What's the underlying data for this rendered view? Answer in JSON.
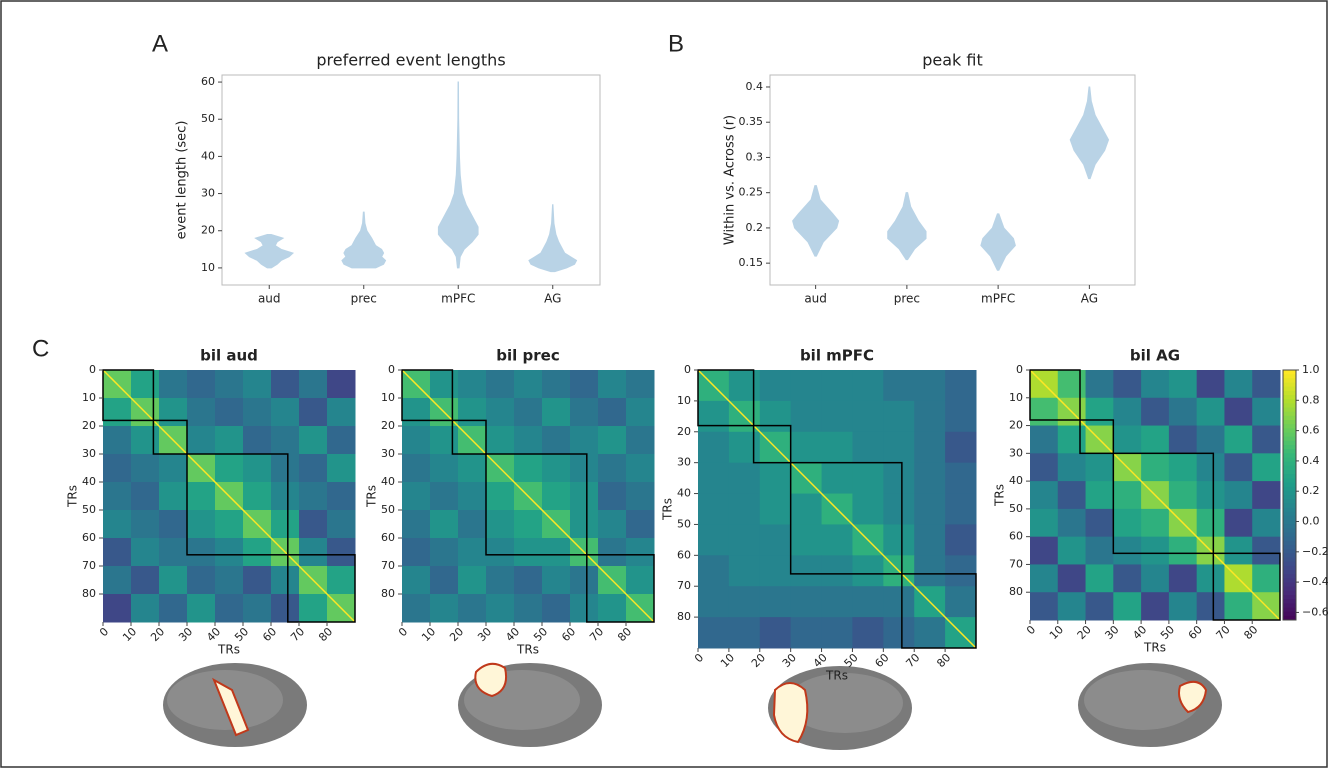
{
  "chart_data": [
    {
      "type": "violin",
      "panel_label": "A",
      "title": "preferred event lengths",
      "ylabel": "event length (sec)",
      "categories": [
        "aud",
        "prec",
        "mPFC",
        "AG"
      ],
      "color": "#b9d3e6",
      "violins": [
        {
          "y": [
            10,
            11,
            12,
            13,
            14,
            15,
            16,
            17,
            18,
            19
          ],
          "width": [
            0.05,
            0.2,
            0.3,
            0.5,
            0.6,
            0.3,
            0.15,
            0.2,
            0.35,
            0.05
          ]
        },
        {
          "y": [
            10,
            11,
            12,
            13,
            14,
            15,
            16,
            17,
            18,
            20,
            22,
            25
          ],
          "width": [
            0.3,
            0.5,
            0.55,
            0.45,
            0.5,
            0.45,
            0.3,
            0.25,
            0.2,
            0.08,
            0.03,
            0.01
          ]
        },
        {
          "y": [
            10,
            13,
            15,
            17,
            19,
            21,
            24,
            27,
            30,
            35,
            40,
            50,
            60
          ],
          "width": [
            0.02,
            0.05,
            0.15,
            0.35,
            0.5,
            0.5,
            0.35,
            0.2,
            0.1,
            0.05,
            0.03,
            0.01,
            0.005
          ]
        },
        {
          "y": [
            9,
            10,
            11,
            12,
            13,
            14,
            15,
            17,
            19,
            22,
            27
          ],
          "width": [
            0.05,
            0.35,
            0.55,
            0.6,
            0.45,
            0.3,
            0.25,
            0.15,
            0.08,
            0.03,
            0.005
          ]
        }
      ],
      "ylim": [
        5.4,
        61.9
      ],
      "yticks": [
        10,
        20,
        30,
        40,
        50,
        60
      ]
    },
    {
      "type": "violin",
      "panel_label": "B",
      "title": "peak fit",
      "ylabel": "Within vs. Across (r)",
      "categories": [
        "aud",
        "prec",
        "mPFC",
        "AG"
      ],
      "color": "#b9d3e6",
      "violins": [
        {
          "y": [
            0.16,
            0.18,
            0.2,
            0.21,
            0.22,
            0.24,
            0.26
          ],
          "width": [
            0.02,
            0.2,
            0.55,
            0.6,
            0.45,
            0.12,
            0.02
          ]
        },
        {
          "y": [
            0.155,
            0.17,
            0.185,
            0.195,
            0.21,
            0.23,
            0.25
          ],
          "width": [
            0.02,
            0.2,
            0.5,
            0.5,
            0.3,
            0.1,
            0.02
          ]
        },
        {
          "y": [
            0.14,
            0.16,
            0.175,
            0.185,
            0.2,
            0.22
          ],
          "width": [
            0.02,
            0.2,
            0.45,
            0.4,
            0.15,
            0.02
          ]
        },
        {
          "y": [
            0.27,
            0.29,
            0.31,
            0.325,
            0.34,
            0.36,
            0.38,
            0.4
          ],
          "width": [
            0.02,
            0.15,
            0.4,
            0.5,
            0.35,
            0.15,
            0.05,
            0.01
          ]
        }
      ],
      "ylim": [
        0.119,
        0.417
      ],
      "yticks": [
        0.15,
        0.2,
        0.25,
        0.3,
        0.35,
        0.4
      ]
    },
    {
      "type": "heatmap",
      "panel_label": "C",
      "title": "bil aud",
      "xlabel": "TRs",
      "ylabel": "TRs",
      "xlim": [
        0,
        90
      ],
      "ylim": [
        0,
        90
      ],
      "xticks": [
        0,
        10,
        20,
        30,
        40,
        50,
        60,
        70,
        80
      ],
      "yticks": [
        0,
        10,
        20,
        30,
        40,
        50,
        60,
        70,
        80
      ],
      "boundaries": [
        0,
        18,
        30,
        66,
        90
      ],
      "matrix": [
        [
          0.6,
          0.3,
          0.0,
          -0.1,
          0.0,
          0.1,
          -0.2,
          0.0,
          -0.3
        ],
        [
          0.3,
          0.6,
          0.2,
          0.0,
          -0.1,
          0.0,
          0.1,
          -0.2,
          0.1
        ],
        [
          0.0,
          0.2,
          0.6,
          0.1,
          0.2,
          -0.1,
          0.0,
          0.2,
          -0.1
        ],
        [
          -0.1,
          0.0,
          0.1,
          0.6,
          0.3,
          0.2,
          0.0,
          -0.1,
          0.2
        ],
        [
          0.0,
          -0.1,
          0.2,
          0.3,
          0.6,
          0.3,
          0.1,
          0.0,
          -0.1
        ],
        [
          0.1,
          0.0,
          -0.1,
          0.2,
          0.3,
          0.6,
          0.3,
          -0.2,
          0.0
        ],
        [
          -0.2,
          0.1,
          0.0,
          0.0,
          0.1,
          0.3,
          0.6,
          0.1,
          -0.2
        ],
        [
          0.0,
          -0.2,
          0.2,
          -0.1,
          0.0,
          -0.2,
          0.1,
          0.6,
          0.3
        ],
        [
          -0.3,
          0.1,
          -0.1,
          0.2,
          -0.1,
          0.0,
          -0.2,
          0.3,
          0.6
        ]
      ]
    },
    {
      "type": "heatmap",
      "title": "bil prec",
      "xlabel": "TRs",
      "ylabel": "TRs",
      "xlim": [
        0,
        90
      ],
      "ylim": [
        0,
        90
      ],
      "xticks": [
        0,
        10,
        20,
        30,
        40,
        50,
        60,
        70,
        80
      ],
      "yticks": [
        0,
        10,
        20,
        30,
        40,
        50,
        60,
        70,
        80
      ],
      "boundaries": [
        0,
        18,
        30,
        66,
        90
      ],
      "matrix": [
        [
          0.5,
          0.2,
          0.1,
          0.0,
          0.1,
          0.0,
          -0.1,
          0.1,
          0.0
        ],
        [
          0.2,
          0.5,
          0.2,
          0.1,
          0.0,
          0.2,
          0.0,
          -0.1,
          0.1
        ],
        [
          0.1,
          0.2,
          0.5,
          0.2,
          0.1,
          0.0,
          0.1,
          0.2,
          0.0
        ],
        [
          0.0,
          0.1,
          0.2,
          0.5,
          0.3,
          0.2,
          0.1,
          0.0,
          0.1
        ],
        [
          0.1,
          0.0,
          0.1,
          0.3,
          0.5,
          0.3,
          0.2,
          -0.1,
          0.0
        ],
        [
          0.0,
          0.2,
          0.0,
          0.2,
          0.3,
          0.5,
          0.2,
          0.1,
          -0.1
        ],
        [
          -0.1,
          0.0,
          0.1,
          0.1,
          0.2,
          0.2,
          0.5,
          0.0,
          0.1
        ],
        [
          0.1,
          -0.1,
          0.2,
          0.0,
          -0.1,
          0.1,
          0.0,
          0.5,
          0.2
        ],
        [
          0.0,
          0.1,
          0.0,
          0.1,
          0.0,
          -0.1,
          0.1,
          0.2,
          0.5
        ]
      ]
    },
    {
      "type": "heatmap",
      "title": "bil mPFC",
      "xlabel": "TRs",
      "ylabel": "TRs",
      "xlim": [
        0,
        90
      ],
      "ylim": [
        0,
        90
      ],
      "xticks": [
        0,
        10,
        20,
        30,
        40,
        50,
        60,
        70,
        80
      ],
      "yticks": [
        0,
        10,
        20,
        30,
        40,
        50,
        60,
        70,
        80
      ],
      "boundaries": [
        0,
        18,
        30,
        66,
        90
      ],
      "matrix": [
        [
          0.4,
          0.2,
          0.1,
          0.1,
          0.1,
          0.1,
          0.0,
          0.0,
          -0.1
        ],
        [
          0.2,
          0.4,
          0.2,
          0.1,
          0.1,
          0.1,
          0.1,
          0.0,
          -0.1
        ],
        [
          0.1,
          0.2,
          0.4,
          0.2,
          0.2,
          0.1,
          0.1,
          0.0,
          -0.2
        ],
        [
          0.1,
          0.1,
          0.2,
          0.4,
          0.2,
          0.2,
          0.1,
          0.0,
          -0.1
        ],
        [
          0.1,
          0.1,
          0.2,
          0.2,
          0.4,
          0.2,
          0.1,
          0.0,
          -0.1
        ],
        [
          0.1,
          0.1,
          0.1,
          0.2,
          0.2,
          0.4,
          0.2,
          0.0,
          -0.2
        ],
        [
          0.0,
          0.1,
          0.1,
          0.1,
          0.1,
          0.2,
          0.4,
          0.0,
          -0.1
        ],
        [
          0.0,
          0.0,
          0.0,
          0.0,
          0.0,
          0.0,
          0.0,
          0.3,
          0.0
        ],
        [
          -0.1,
          -0.1,
          -0.2,
          -0.1,
          -0.1,
          -0.2,
          -0.1,
          0.0,
          0.3
        ]
      ]
    },
    {
      "type": "heatmap",
      "title": "bil AG",
      "xlabel": "TRs",
      "ylabel": "TRs",
      "xlim": [
        0,
        90
      ],
      "ylim": [
        0,
        90
      ],
      "xticks": [
        0,
        10,
        20,
        30,
        40,
        50,
        60,
        70,
        80
      ],
      "yticks": [
        0,
        10,
        20,
        30,
        40,
        50,
        60,
        70,
        80
      ],
      "boundaries": [
        0,
        18,
        30,
        66,
        90
      ],
      "matrix": [
        [
          0.8,
          0.5,
          0.0,
          -0.2,
          0.1,
          0.2,
          -0.3,
          0.1,
          -0.2
        ],
        [
          0.5,
          0.7,
          0.3,
          0.1,
          -0.2,
          0.0,
          0.2,
          -0.3,
          0.1
        ],
        [
          0.0,
          0.3,
          0.7,
          0.2,
          0.3,
          -0.2,
          0.0,
          0.3,
          -0.2
        ],
        [
          -0.2,
          0.1,
          0.2,
          0.7,
          0.4,
          0.3,
          0.1,
          -0.2,
          0.3
        ],
        [
          0.1,
          -0.2,
          0.3,
          0.4,
          0.7,
          0.4,
          0.2,
          0.1,
          -0.3
        ],
        [
          0.2,
          0.0,
          -0.2,
          0.3,
          0.4,
          0.7,
          0.4,
          -0.3,
          0.1
        ],
        [
          -0.3,
          0.2,
          0.0,
          0.1,
          0.2,
          0.4,
          0.7,
          0.2,
          -0.2
        ],
        [
          0.1,
          -0.3,
          0.3,
          -0.2,
          0.1,
          -0.3,
          0.2,
          0.8,
          0.4
        ],
        [
          -0.2,
          0.1,
          -0.2,
          0.3,
          -0.3,
          0.1,
          -0.2,
          0.4,
          0.7
        ]
      ],
      "colorbar": {
        "lim": [
          -0.65,
          1.0
        ],
        "ticks": [
          {
            "value": 1.0,
            "label": "1.0"
          },
          0.8,
          0.6,
          0.4,
          0.2,
          {
            "value": 0,
            "label": "0.0"
          },
          {
            "value": -0.2,
            "label": "−0.2"
          },
          {
            "value": -0.4,
            "label": "−0.4"
          },
          {
            "value": -0.6,
            "label": "−0.6"
          }
        ]
      }
    }
  ]
}
